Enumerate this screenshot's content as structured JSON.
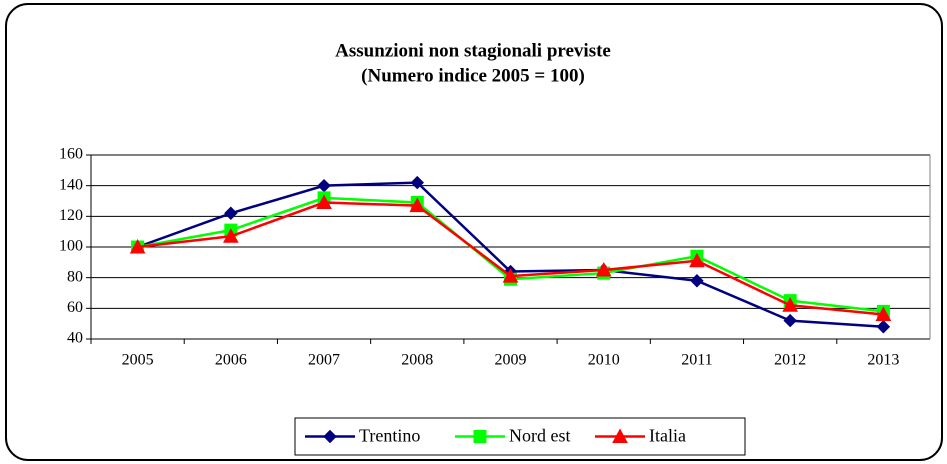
{
  "chart_data": {
    "type": "line",
    "title": "Assunzioni non stagionali previste",
    "subtitle": "(Numero indice 2005 = 100)",
    "categories": [
      "2005",
      "2006",
      "2007",
      "2008",
      "2009",
      "2010",
      "2011",
      "2012",
      "2013"
    ],
    "series": [
      {
        "name": "Trentino",
        "color": "#000080",
        "marker": "diamond",
        "values": [
          100,
          122,
          140,
          142,
          84,
          85,
          78,
          52,
          48
        ]
      },
      {
        "name": "Nord est",
        "color": "#00ff00",
        "marker": "square",
        "values": [
          100,
          111,
          132,
          129,
          79,
          83,
          94,
          65,
          58
        ]
      },
      {
        "name": "Italia",
        "color": "#ff0000",
        "marker": "triangle",
        "values": [
          100,
          107,
          129,
          127,
          81,
          85,
          91,
          62,
          56
        ]
      }
    ],
    "ylim": [
      40,
      160
    ],
    "yticks": [
      40,
      60,
      80,
      100,
      120,
      140,
      160
    ],
    "grid": true,
    "legend": "bottom"
  }
}
